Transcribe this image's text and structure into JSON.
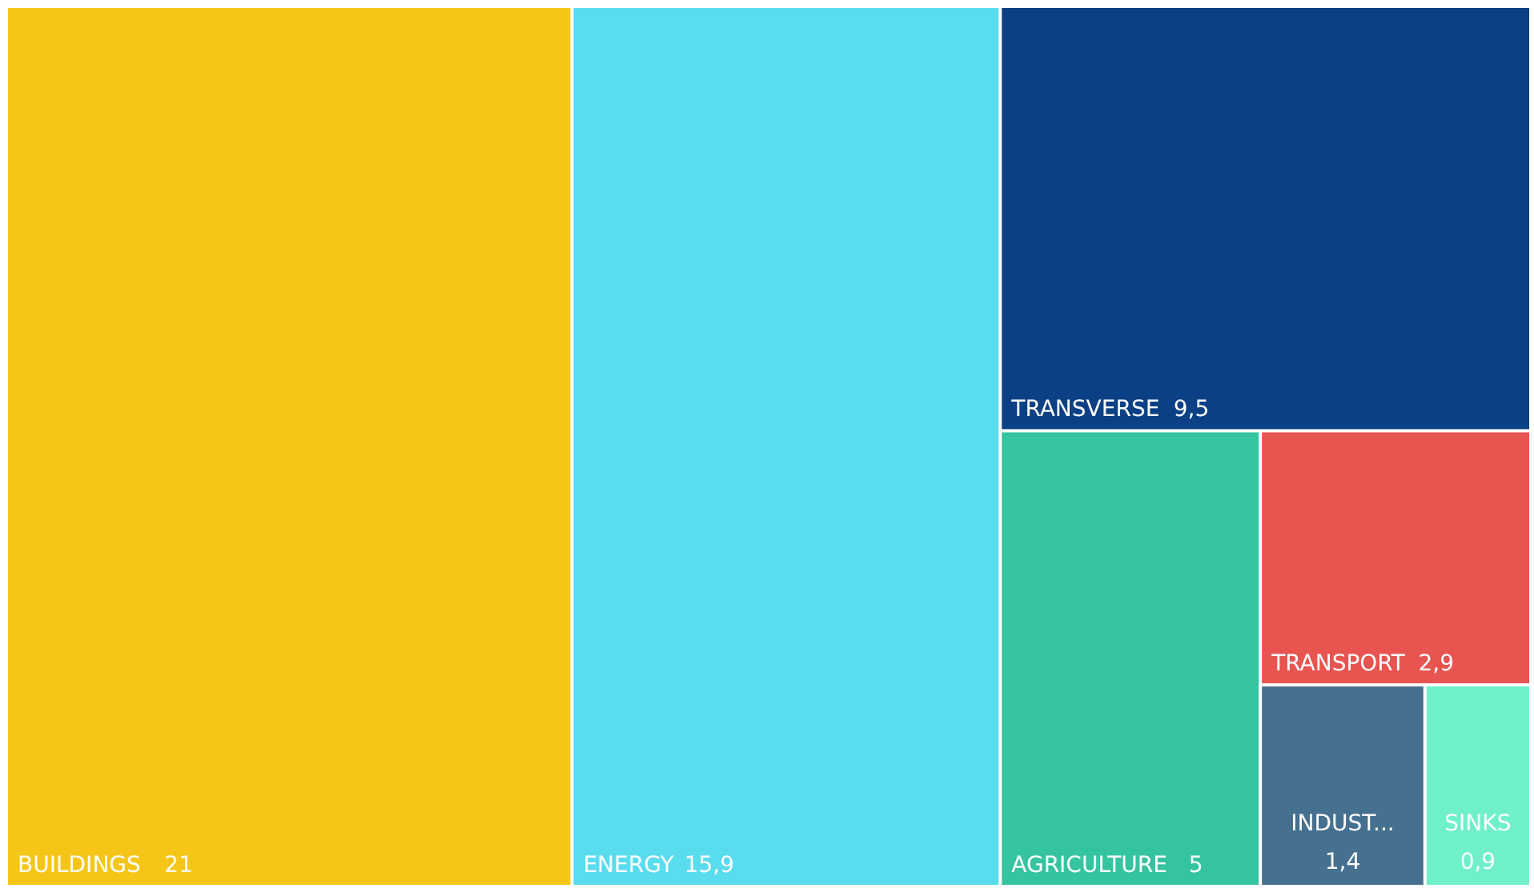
{
  "chart_data": {
    "type": "other",
    "categories": [
      "BUILDINGS",
      "ENERGY",
      "TRANSVERSE",
      "AGRICULTURE",
      "TRANSPORT",
      "INDUST...",
      "SINKS"
    ],
    "values": [
      21,
      15.9,
      9.5,
      5,
      2.9,
      1.4,
      0.9
    ],
    "value_labels": [
      "21",
      "15,9",
      "9,5",
      "5",
      "2,9",
      "1,4",
      "0,9"
    ],
    "colors": [
      "#f5c518",
      "#5adcef",
      "#0b4084",
      "#35c4a0",
      "#e85450",
      "#46708f",
      "#6ff0c8"
    ]
  }
}
